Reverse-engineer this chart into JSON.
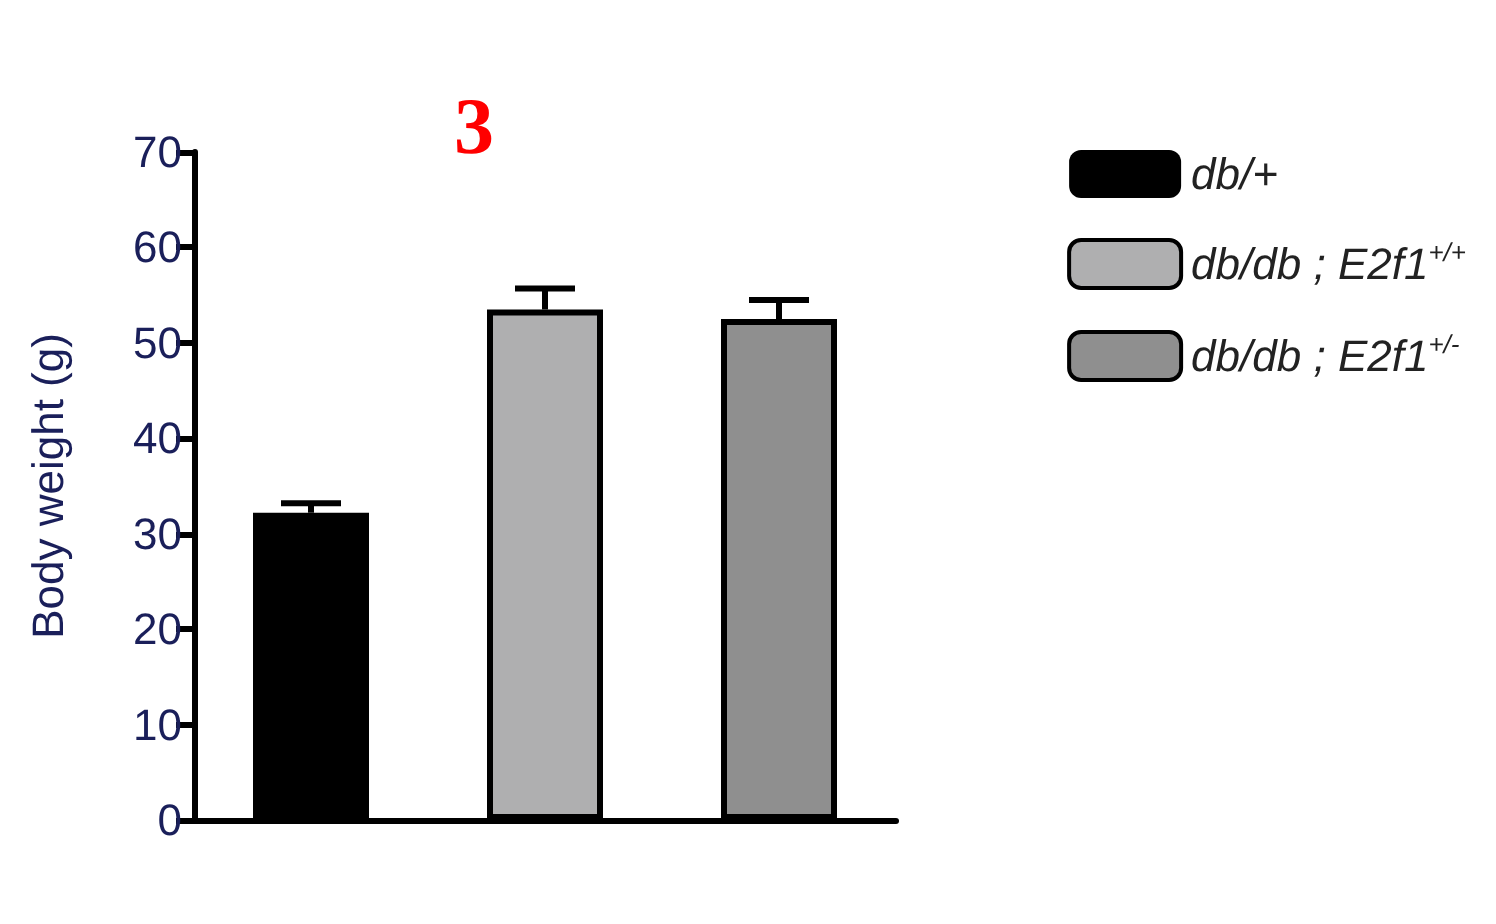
{
  "chart_data": {
    "type": "bar",
    "title": "3",
    "ylabel": "Body weight (g)",
    "categories": [
      null,
      null,
      null
    ],
    "series": [
      {
        "name": "db/+",
        "color": "#000000",
        "values": [
          32.2,
          null,
          null
        ],
        "errors": [
          1.0,
          null,
          null
        ]
      },
      {
        "name": "db/db ; E2f1$^{+/+}$",
        "color": "#afafb0",
        "values": [
          null,
          53.5,
          null
        ],
        "errors": [
          null,
          2.2,
          null
        ]
      },
      {
        "name": "db/db ; E2f1$^{+/-}$",
        "color": "#8f8f8f",
        "values": [
          null,
          null,
          52.5
        ],
        "errors": [
          null,
          null,
          2.0
        ]
      }
    ],
    "ylim": [
      0,
      70
    ],
    "yticks": [
      0,
      10,
      20,
      30,
      40,
      50,
      60,
      70
    ],
    "grid": false,
    "legend": "right"
  }
}
